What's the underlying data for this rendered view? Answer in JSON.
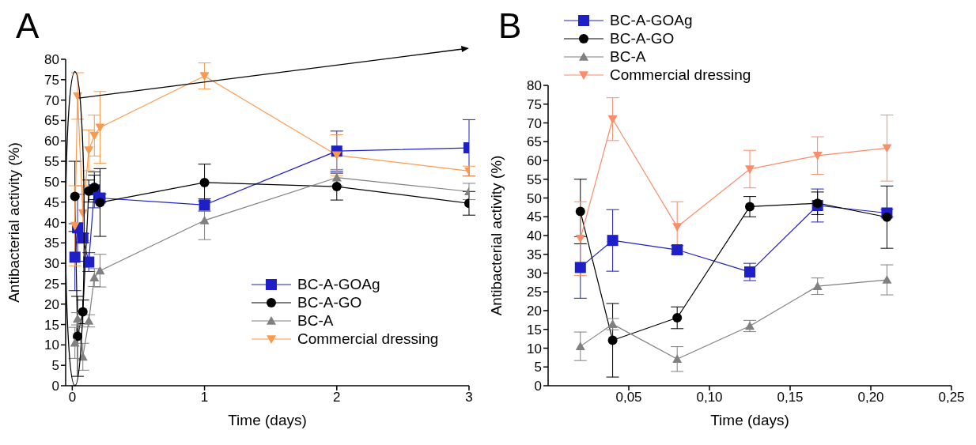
{
  "chart_data": [
    {
      "type": "line",
      "title": "A",
      "xlabel": "Time (days)",
      "ylabel": "Antibacterial activity (%)",
      "x": [
        0.02,
        0.04,
        0.08,
        0.125,
        0.167,
        0.21,
        1,
        2,
        3
      ],
      "xlim": [
        -0.05,
        3
      ],
      "xticks": [
        0,
        1,
        2,
        3
      ],
      "ylim": [
        0,
        80
      ],
      "yticks": [
        0,
        5,
        10,
        15,
        20,
        25,
        30,
        35,
        40,
        45,
        50,
        55,
        60,
        65,
        70,
        75,
        80
      ],
      "legend": "bottom right",
      "series": [
        {
          "name": "BC-A-GOAg",
          "color": "#1f1fc8",
          "marker": "square",
          "values": [
            31.5,
            38.7,
            36.2,
            30.3,
            48,
            46,
            44.3,
            57.5,
            58.3
          ],
          "errors": [
            8.2,
            8.2,
            1.1,
            2.3,
            4.4,
            1,
            1.5,
            4.9,
            6.9
          ]
        },
        {
          "name": "BC-A-GO",
          "color": "#000000",
          "marker": "circle",
          "values": [
            46.4,
            12.1,
            18.1,
            47.7,
            48.6,
            44.9,
            49.8,
            48.8,
            44.7
          ],
          "errors": [
            8.6,
            9.8,
            2.9,
            2.7,
            3,
            8.3,
            4.5,
            3.3,
            2.9
          ]
        },
        {
          "name": "BC-A",
          "color": "#808080",
          "marker": "triangle",
          "values": [
            10.5,
            16.4,
            7.1,
            15.9,
            26.5,
            28.2,
            40.5,
            51,
            47.6
          ],
          "errors": [
            3.8,
            1.5,
            3.3,
            1.5,
            2.2,
            4,
            4.7,
            2,
            2
          ]
        },
        {
          "name": "Commercial dressing",
          "color": "#fb9a4e",
          "marker": "triangle-down",
          "values": [
            39.2,
            71,
            42.3,
            57.7,
            61.3,
            63.3,
            75.9,
            56.5,
            52.6
          ],
          "errors": [
            9.8,
            5.7,
            6.7,
            5,
            5,
            8.8,
            3.2,
            5,
            1.2
          ]
        }
      ]
    },
    {
      "type": "line",
      "title": "B",
      "xlabel": "Time (days)",
      "ylabel": "Antibacterial activity (%)",
      "x": [
        0.02,
        0.04,
        0.08,
        0.125,
        0.167,
        0.21
      ],
      "xlim": [
        0,
        0.25
      ],
      "xticks": [
        {
          "value": 0.05,
          "label": "0,05"
        },
        {
          "value": 0.1,
          "label": "0,10"
        },
        {
          "value": 0.15,
          "label": "0,15"
        },
        {
          "value": 0.2,
          "label": "0,20"
        },
        {
          "value": 0.25,
          "label": "0,25"
        }
      ],
      "ylim": [
        0,
        80
      ],
      "yticks": [
        0,
        5,
        10,
        15,
        20,
        25,
        30,
        35,
        40,
        45,
        50,
        55,
        60,
        65,
        70,
        75,
        80
      ],
      "legend": "top left",
      "series": [
        {
          "name": "BC-A-GOAg",
          "color": "#1f1fc8",
          "marker": "square",
          "values": [
            31.5,
            38.7,
            36.2,
            30.3,
            48,
            46
          ],
          "errors": [
            8.2,
            8.2,
            1.1,
            2.3,
            4.4,
            1
          ]
        },
        {
          "name": "BC-A-GO",
          "color": "#000000",
          "marker": "circle",
          "values": [
            46.4,
            12.1,
            18.1,
            47.7,
            48.6,
            44.9
          ],
          "errors": [
            8.6,
            9.8,
            2.9,
            2.7,
            3,
            8.3
          ]
        },
        {
          "name": "BC-A",
          "color": "#808080",
          "marker": "triangle",
          "values": [
            10.5,
            16.4,
            7.1,
            15.9,
            26.5,
            28.2
          ],
          "errors": [
            3.8,
            1.5,
            3.3,
            1.5,
            2.2,
            4
          ]
        },
        {
          "name": "Commercial dressing",
          "color": "#fb8c69",
          "marker": "triangle-down",
          "values": [
            39.2,
            71,
            42.3,
            57.7,
            61.3,
            63.3
          ],
          "errors": [
            9.8,
            5.7,
            6.7,
            5,
            5,
            8.8
          ]
        }
      ]
    }
  ]
}
